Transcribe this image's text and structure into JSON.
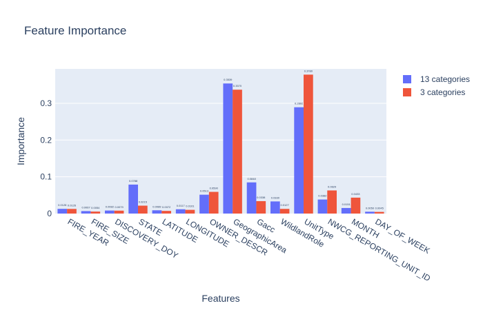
{
  "chart_data": {
    "type": "bar",
    "title": "Feature Importance",
    "xlabel": "Features",
    "ylabel": "Importance",
    "ylim": [
      0,
      0.3936
    ],
    "yticks": [
      0,
      0.1,
      0.2,
      0.3
    ],
    "categories": [
      "FIRE_YEAR",
      "FIRE_SIZE",
      "DISCOVERY_DOY",
      "STATE",
      "LATITUDE",
      "LONGITUDE",
      "OWNER_DESCR",
      "GeographicArea",
      "Gacc",
      "WildlandRole",
      "UnitType",
      "NWCG_REPORTING_UNIT_ID",
      "MONTH",
      "DAY_OF_WEEK"
    ],
    "series": [
      {
        "name": "13 categories",
        "color": "#636efa",
        "values": [
          0.0128,
          0.0067,
          0.0082,
          0.0788,
          0.0089,
          0.0117,
          0.0513,
          0.3539,
          0.0848,
          0.033,
          0.2892,
          0.0382,
          0.0151,
          0.005
        ],
        "labels": [
          "0.0128",
          "0.0067",
          "0.0082",
          "0.0788",
          "0.0089",
          "0.0117",
          "0.0513",
          "0.3539",
          "0.0848",
          "0.0330",
          "0.2892",
          "0.0382",
          "0.0151",
          "0.0050"
        ]
      },
      {
        "name": "3 categories",
        "color": "#ef553b",
        "values": [
          0.0126,
          0.0054,
          0.0079,
          0.0215,
          0.0072,
          0.0101,
          0.059,
          0.337,
          0.0338,
          0.0127,
          0.378,
          0.0629,
          0.0433,
          0.0045
        ],
        "labels": [
          "0.0126",
          "0.0054",
          "0.0079",
          "0.0215",
          "0.0072",
          "0.0101",
          "0.0590",
          "0.3370",
          "0.0338",
          "0.0127",
          "0.3780",
          "0.0629",
          "0.0433",
          "0.0045"
        ]
      }
    ],
    "legend": "top-right",
    "grid": true
  },
  "colors": {
    "plot_bg": "#e5ecf6",
    "grid": "#ffffff",
    "text": "#2a3f5f"
  }
}
